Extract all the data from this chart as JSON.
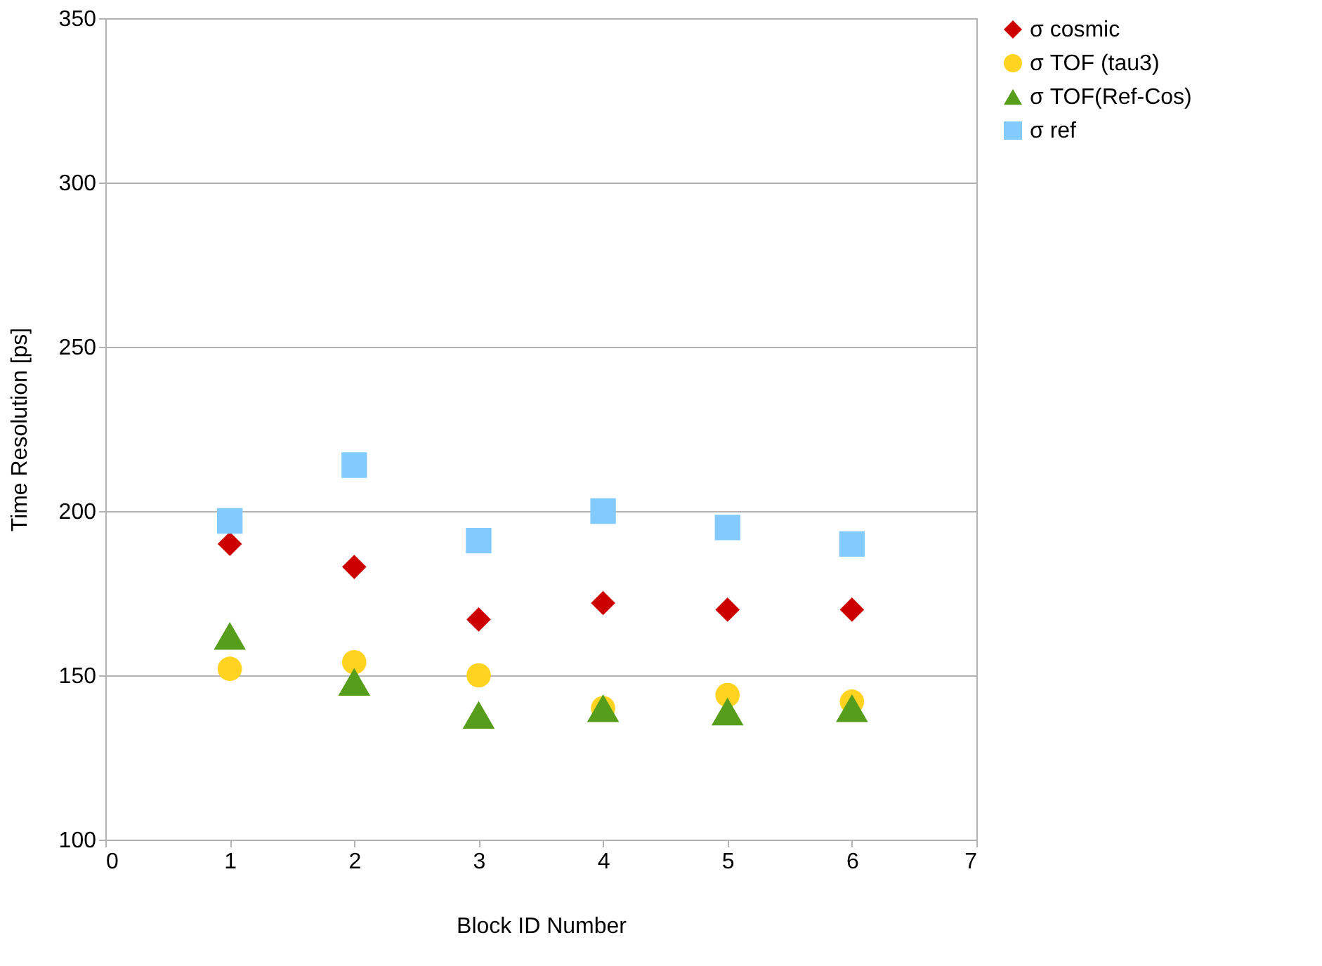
{
  "chart_data": {
    "type": "scatter",
    "xlabel": "Block ID Number",
    "ylabel": "Time Resolution [ps]",
    "x": [
      1,
      2,
      3,
      4,
      5,
      6
    ],
    "series": [
      {
        "name": "σ cosmic",
        "color": "#cc0000",
        "marker": "diamond",
        "values": [
          190,
          183,
          167,
          172,
          170,
          170
        ]
      },
      {
        "name": "σ TOF  (tau3)",
        "color": "#ffd320",
        "marker": "circle",
        "values": [
          152,
          154,
          150,
          140,
          144,
          142
        ]
      },
      {
        "name": "σ TOF(Ref-Cos)",
        "color": "#579d1c",
        "marker": "triangle",
        "values": [
          162,
          148,
          138,
          140,
          139,
          140
        ]
      },
      {
        "name": "σ ref",
        "color": "#83caff",
        "marker": "square",
        "values": [
          197,
          214,
          191,
          200,
          195,
          190
        ]
      }
    ],
    "xlim": [
      0,
      7
    ],
    "xticks": [
      0,
      1,
      2,
      3,
      4,
      5,
      6,
      7
    ],
    "ylim": [
      100,
      350
    ],
    "yticks": [
      100,
      150,
      200,
      250,
      300,
      350
    ],
    "grid": "y",
    "legend": "right"
  }
}
